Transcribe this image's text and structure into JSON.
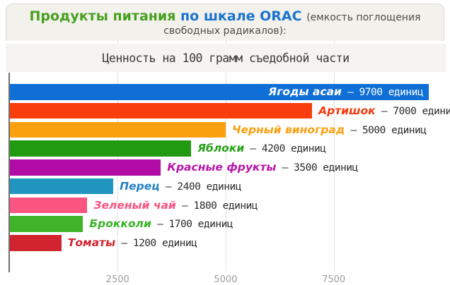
{
  "header": {
    "title_green": "Продукты питания",
    "title_blue": "по шкале ORAC",
    "title_note_line1": "(емкость поглощения",
    "title_note_line2": "свободных радикалов):",
    "title_green_color": "#48a01f",
    "title_blue_color": "#1a73cf",
    "title_note_color": "#4c4b47"
  },
  "chart_data": {
    "type": "bar",
    "orientation": "horizontal",
    "title": "Ценность на 100 грамм съедобной части",
    "xlabel": "",
    "ylabel": "",
    "xlim": [
      0,
      10100
    ],
    "xticks": [
      2500,
      5000,
      7500
    ],
    "grid": true,
    "legend": "none",
    "units_word": "единиц",
    "dash": "–",
    "categories": [
      "Ягоды асаи",
      "Артишок",
      "Черный виноград",
      "Яблоки",
      "Красные фрукты",
      "Перец",
      "Зеленый чай",
      "Брокколи",
      "Томаты"
    ],
    "values": [
      9700,
      7000,
      5000,
      4200,
      3500,
      2400,
      1800,
      1700,
      1200
    ],
    "items": [
      {
        "name": "Ягоды асаи",
        "value": 9700,
        "bar_color": "#0f6fd7",
        "label_color": "#ffffff",
        "value_color": "#ffffff",
        "label_inside": true
      },
      {
        "name": "Артишок",
        "value": 7000,
        "bar_color": "#f93d0d",
        "label_color": "#f4380b"
      },
      {
        "name": "Черный виноград",
        "value": 5000,
        "bar_color": "#faa00f",
        "label_color": "#f9a011"
      },
      {
        "name": "Яблоки",
        "value": 4200,
        "bar_color": "#219a12",
        "label_color": "#27a117"
      },
      {
        "name": "Красные фрукты",
        "value": 3500,
        "bar_color": "#b00ba5",
        "label_color": "#b815ab"
      },
      {
        "name": "Перец",
        "value": 2400,
        "bar_color": "#2095c0",
        "label_color": "#2581c4"
      },
      {
        "name": "Зеленый чай",
        "value": 1800,
        "bar_color": "#fa5480",
        "label_color": "#fa5480"
      },
      {
        "name": "Брокколи",
        "value": 1700,
        "bar_color": "#3fb428",
        "label_color": "#3cb32a"
      },
      {
        "name": "Томаты",
        "value": 1200,
        "bar_color": "#d2242f",
        "label_color": "#d2242f"
      }
    ],
    "axis_color": "#6f6f6f",
    "gridline_color": "#e2e2e2",
    "tick_label_color": "#9c9c9c",
    "value_text_color": "#2b2b2b"
  }
}
